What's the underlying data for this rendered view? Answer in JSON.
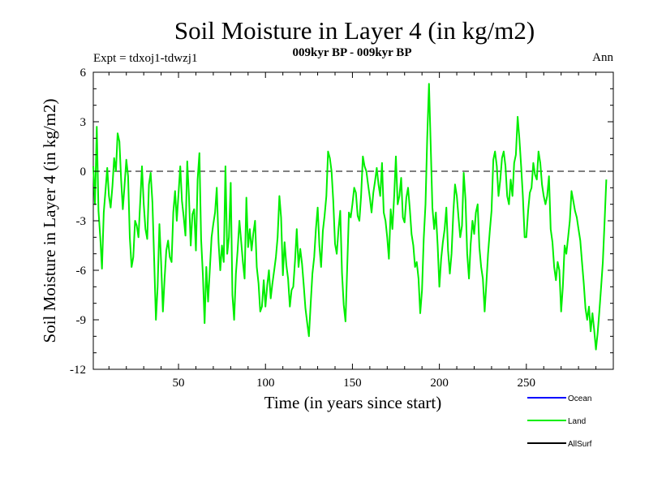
{
  "chart_data": {
    "type": "line",
    "title": "Soil Moisture in Layer 4 (in kg/m2)",
    "subtitle": "009kyr BP - 009kyr BP",
    "experiment_label": "Expt = tdxoj1-tdwzj1",
    "season_label": "Ann",
    "xlabel": "Time (in years since start)",
    "ylabel": "Soil Moisture in Layer 4 (in kg/m2)",
    "xlim": [
      1,
      300
    ],
    "ylim": [
      -12,
      6
    ],
    "x_ticks": [
      50,
      100,
      150,
      200,
      250
    ],
    "y_ticks": [
      6,
      3,
      0,
      -3,
      -6,
      -9,
      -12
    ],
    "reference_line": 0,
    "legend": [
      {
        "name": "Ocean",
        "color": "#0000ff"
      },
      {
        "name": "Land",
        "color": "#00ee00"
      },
      {
        "name": "AllSurf",
        "color": "#000000"
      }
    ],
    "series": [
      {
        "name": "Land",
        "color": "#00ee00",
        "x_start": 1,
        "x_step": 1,
        "values": [
          0.3,
          -2.0,
          2.7,
          -2.4,
          -4.0,
          -5.9,
          -2.5,
          -1.2,
          0.2,
          -1.5,
          -2.2,
          -0.9,
          0.8,
          0.0,
          2.3,
          1.8,
          -0.5,
          -2.3,
          -0.8,
          0.7,
          -0.3,
          -4.0,
          -5.8,
          -5.2,
          -3.0,
          -3.3,
          -4.0,
          -1.8,
          0.3,
          -2.0,
          -3.5,
          -4.1,
          -0.8,
          -0.1,
          -1.9,
          -5.3,
          -9.0,
          -7.0,
          -3.2,
          -5.5,
          -8.5,
          -6.5,
          -4.8,
          -4.2,
          -5.2,
          -5.5,
          -2.5,
          -1.2,
          -3.0,
          -1.4,
          0.3,
          -1.8,
          -2.8,
          -3.9,
          0.6,
          -1.5,
          -4.5,
          -2.6,
          -2.3,
          -4.8,
          -0.5,
          1.1,
          -4.1,
          -6.3,
          -9.2,
          -5.8,
          -7.9,
          -6.0,
          -4.0,
          -3.2,
          -2.5,
          -1.0,
          -4.3,
          -6.0,
          -4.5,
          -5.5,
          0.3,
          -5.0,
          -4.0,
          -0.7,
          -7.5,
          -9.0,
          -6.2,
          -4.8,
          -3.0,
          -4.2,
          -5.5,
          -6.5,
          -1.6,
          -4.6,
          -3.5,
          -4.8,
          -3.8,
          -3.0,
          -5.8,
          -6.8,
          -8.5,
          -8.2,
          -6.6,
          -8.2,
          -6.9,
          -6.0,
          -7.7,
          -6.8,
          -6.0,
          -5.2,
          -4.0,
          -1.5,
          -2.8,
          -6.3,
          -4.3,
          -5.7,
          -6.5,
          -8.2,
          -7.2,
          -7.0,
          -5.4,
          -3.5,
          -5.8,
          -4.7,
          -5.6,
          -6.9,
          -8.3,
          -9.2,
          -10.0,
          -8.0,
          -6.2,
          -5.2,
          -3.5,
          -2.2,
          -4.5,
          -5.8,
          -3.6,
          -2.7,
          -1.5,
          1.2,
          0.8,
          0.0,
          -1.8,
          -4.4,
          -5.0,
          -3.5,
          -2.4,
          -6.2,
          -8.1,
          -9.1,
          -5.8,
          -2.5,
          -2.8,
          -2.0,
          -1.0,
          -1.3,
          -2.7,
          -3.0,
          -1.5,
          0.9,
          0.3,
          0.0,
          -0.8,
          -1.6,
          -2.5,
          -1.3,
          -0.6,
          0.2,
          -0.8,
          -1.5,
          0.5,
          -2.5,
          -3.0,
          -4.0,
          -5.3,
          -2.3,
          -3.5,
          -1.5,
          0.9,
          -2.0,
          -1.5,
          -0.4,
          -2.8,
          -3.1,
          -1.6,
          -1.0,
          -2.3,
          -3.8,
          -4.5,
          -5.8,
          -5.5,
          -6.5,
          -8.6,
          -7.2,
          -4.1,
          -2.0,
          2.0,
          5.3,
          1.6,
          -2.2,
          -3.5,
          -2.5,
          -4.5,
          -7.0,
          -5.3,
          -4.3,
          -3.5,
          -2.2,
          -4.8,
          -6.2,
          -5.0,
          -2.5,
          -0.8,
          -1.5,
          -2.8,
          -4.0,
          -3.3,
          -0.1,
          -1.7,
          -5.0,
          -6.5,
          -4.4,
          -3.0,
          -3.8,
          -2.5,
          -2.0,
          -4.6,
          -5.8,
          -6.5,
          -8.5,
          -6.8,
          -5.0,
          -3.6,
          -2.4,
          0.7,
          1.2,
          0.3,
          -1.5,
          -0.5,
          0.8,
          1.2,
          0.3,
          -1.5,
          -2.0,
          -0.5,
          -1.5,
          0.5,
          1.0,
          3.3,
          2.0,
          0.3,
          -1.5,
          -4.0,
          -4.0,
          -2.4,
          -1.3,
          -1.0,
          0.5,
          -0.2,
          -0.5,
          1.2,
          0.5,
          -0.8,
          -1.5,
          -2.0,
          -1.5,
          -0.3,
          -3.5,
          -4.3,
          -5.8,
          -6.6,
          -5.5,
          -6.0,
          -8.5,
          -7.0,
          -4.5,
          -5.0,
          -4.0,
          -3.0,
          -1.2,
          -1.8,
          -2.4,
          -2.8,
          -3.5,
          -4.2,
          -5.5,
          -6.8,
          -8.3,
          -9.0,
          -8.2,
          -9.7,
          -8.6,
          -9.6,
          -10.8,
          -9.8,
          -8.5,
          -7.0,
          -5.5,
          -3.0,
          -0.5
        ]
      },
      {
        "name": "Ocean",
        "color": "#0000ff",
        "values": []
      },
      {
        "name": "AllSurf",
        "color": "#000000",
        "values": []
      }
    ]
  }
}
